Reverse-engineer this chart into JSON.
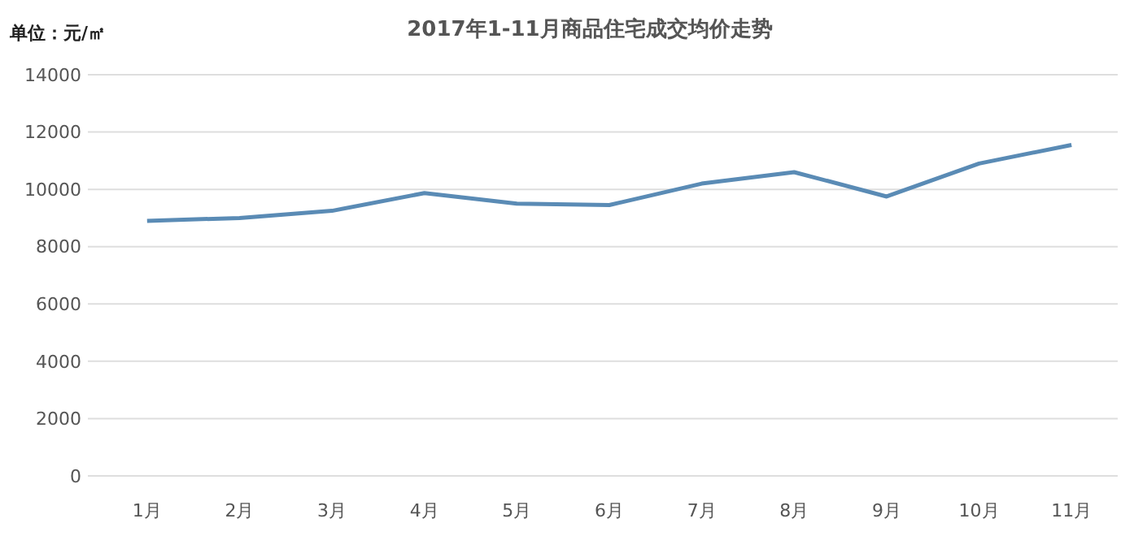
{
  "chart_data": {
    "type": "line",
    "title": "2017年1-11月商品住宅成交均价走势",
    "ylabel": "单位：元/㎡",
    "categories": [
      "1月",
      "2月",
      "3月",
      "4月",
      "5月",
      "6月",
      "7月",
      "8月",
      "9月",
      "10月",
      "11月"
    ],
    "series": [
      {
        "color": "#5a8bb5",
        "values": [
          8900,
          9000,
          9250,
          9870,
          9500,
          9450,
          10200,
          10600,
          9750,
          10900,
          11550
        ]
      }
    ],
    "ylim": [
      0,
      14000
    ],
    "yticks": [
      0,
      2000,
      4000,
      6000,
      8000,
      10000,
      12000,
      14000
    ],
    "grid": "y",
    "marker": "none",
    "line_style": "solid"
  }
}
